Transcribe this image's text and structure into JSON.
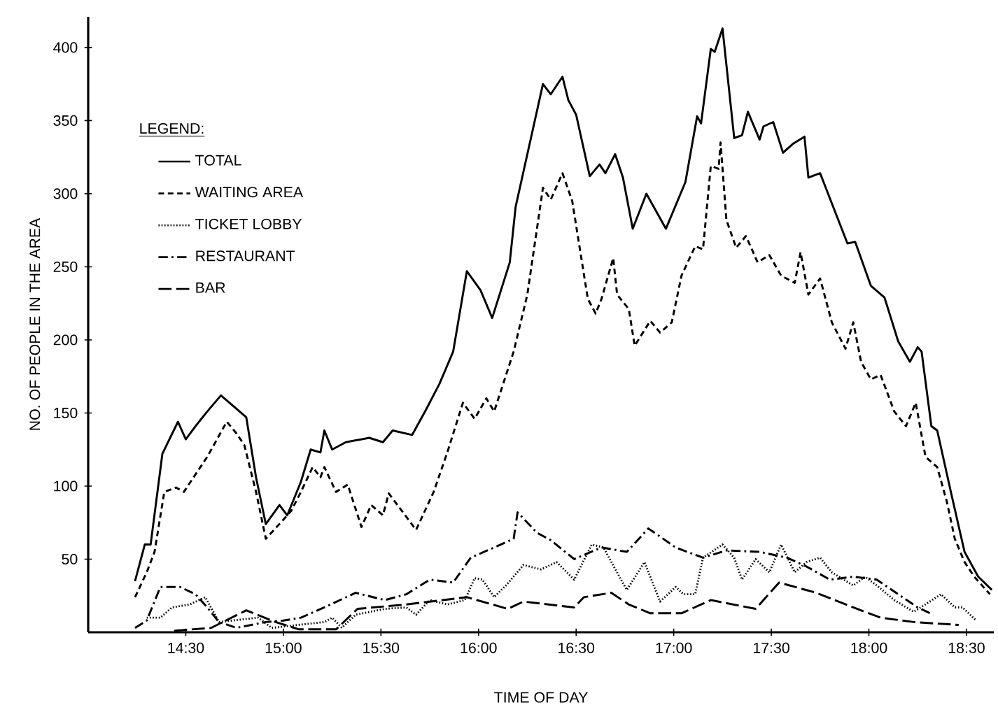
{
  "chart_data": {
    "type": "line",
    "xlabel": "TIME OF DAY",
    "ylabel": "NO. OF PEOPLE IN THE AREA",
    "legend_title": "LEGEND:",
    "legend": "top left",
    "grid": false,
    "marker": "none",
    "xlim": [
      14.0,
      18.64
    ],
    "ylim": [
      0,
      421
    ],
    "xticks": [
      {
        "value": 14.5,
        "label": "14:30"
      },
      {
        "value": 15.0,
        "label": "15:00"
      },
      {
        "value": 15.5,
        "label": "15:30"
      },
      {
        "value": 16.0,
        "label": "16:00"
      },
      {
        "value": 16.5,
        "label": "16:30"
      },
      {
        "value": 17.0,
        "label": "17:00"
      },
      {
        "value": 17.5,
        "label": "17:30"
      },
      {
        "value": 18.0,
        "label": "18:00"
      },
      {
        "value": 18.5,
        "label": "18:30"
      }
    ],
    "yticks": [
      50,
      100,
      150,
      200,
      250,
      300,
      350,
      400
    ],
    "series": [
      {
        "name": "TOTAL",
        "color": "#000000",
        "line_style": "solid",
        "x": [
          14.24,
          14.29,
          14.32,
          14.38,
          14.46,
          14.5,
          14.55,
          14.61,
          14.68,
          14.75,
          14.81,
          14.86,
          14.91,
          14.98,
          15.02,
          15.09,
          15.14,
          15.19,
          15.21,
          15.25,
          15.32,
          15.44,
          15.51,
          15.56,
          15.66,
          15.73,
          15.8,
          15.87,
          15.94,
          16.01,
          16.07,
          16.16,
          16.19,
          16.33,
          16.37,
          16.43,
          16.46,
          16.5,
          16.57,
          16.62,
          16.65,
          16.7,
          16.74,
          16.79,
          16.86,
          16.96,
          17.06,
          17.12,
          17.14,
          17.19,
          17.21,
          17.25,
          17.31,
          17.35,
          17.38,
          17.44,
          17.46,
          17.51,
          17.56,
          17.61,
          17.67,
          17.69,
          17.75,
          17.89,
          17.93,
          18.01,
          18.08,
          18.15,
          18.21,
          18.25,
          18.27,
          18.32,
          18.35,
          18.42,
          18.49,
          18.56,
          18.63
        ],
        "values": [
          35,
          60,
          60,
          122,
          144,
          132,
          141,
          151,
          162,
          154,
          147,
          106,
          74,
          87,
          80,
          103,
          125,
          123,
          138,
          125,
          130,
          133,
          130,
          138,
          135,
          152,
          170,
          192,
          247,
          234,
          215,
          253,
          291,
          375,
          368,
          380,
          364,
          354,
          312,
          320,
          314,
          327,
          311,
          276,
          300,
          276,
          308,
          353,
          348,
          399,
          397,
          413,
          338,
          340,
          356,
          337,
          346,
          349,
          328,
          334,
          339,
          311,
          314,
          266,
          267,
          237,
          229,
          199,
          185,
          195,
          192,
          141,
          138,
          96,
          55,
          38,
          29
        ]
      },
      {
        "name": "WAITING AREA",
        "color": "#000000",
        "line_style": "dashed",
        "x": [
          14.24,
          14.3,
          14.34,
          14.39,
          14.45,
          14.49,
          14.55,
          14.61,
          14.71,
          14.76,
          14.8,
          14.86,
          14.91,
          14.98,
          15.04,
          15.09,
          15.15,
          15.19,
          15.21,
          15.27,
          15.33,
          15.4,
          15.45,
          15.51,
          15.54,
          15.68,
          15.77,
          15.84,
          15.92,
          15.98,
          16.04,
          16.08,
          16.18,
          16.25,
          16.33,
          16.37,
          16.43,
          16.48,
          16.56,
          16.6,
          16.63,
          16.69,
          16.71,
          16.77,
          16.8,
          16.88,
          16.93,
          16.99,
          17.04,
          17.11,
          17.15,
          17.19,
          17.23,
          17.24,
          17.27,
          17.32,
          17.37,
          17.43,
          17.49,
          17.55,
          17.62,
          17.65,
          17.69,
          17.75,
          17.81,
          17.88,
          17.92,
          17.96,
          18.01,
          18.06,
          18.13,
          18.19,
          18.24,
          18.29,
          18.35,
          18.4,
          18.44,
          18.49,
          18.54,
          18.62
        ],
        "values": [
          24,
          41,
          55,
          96,
          99,
          96,
          108,
          120,
          144,
          136,
          128,
          96,
          64,
          74,
          83,
          96,
          113,
          106,
          113,
          96,
          101,
          72,
          87,
          80,
          95,
          70,
          96,
          123,
          157,
          146,
          160,
          151,
          192,
          231,
          304,
          296,
          314,
          295,
          228,
          218,
          228,
          256,
          231,
          221,
          196,
          213,
          205,
          212,
          244,
          264,
          262,
          319,
          317,
          335,
          282,
          263,
          271,
          253,
          258,
          244,
          239,
          260,
          231,
          242,
          212,
          194,
          212,
          185,
          173,
          176,
          151,
          141,
          157,
          120,
          113,
          89,
          64,
          48,
          38,
          26
        ]
      },
      {
        "name": "TICKET LOBBY",
        "color": "#000000",
        "line_style": "dotted",
        "x": [
          14.3,
          14.37,
          14.43,
          14.52,
          14.6,
          14.67,
          14.87,
          14.94,
          15.21,
          15.25,
          15.3,
          15.37,
          15.52,
          15.63,
          15.68,
          15.75,
          15.84,
          15.93,
          15.98,
          16.02,
          16.08,
          16.14,
          16.23,
          16.32,
          16.4,
          16.49,
          16.58,
          16.64,
          16.73,
          16.76,
          16.85,
          16.93,
          17.01,
          17.05,
          17.11,
          17.15,
          17.25,
          17.31,
          17.35,
          17.42,
          17.49,
          17.55,
          17.62,
          17.68,
          17.75,
          17.81,
          17.92,
          17.98,
          18.04,
          18.13,
          18.23,
          18.37,
          18.44,
          18.48,
          18.55
        ],
        "values": [
          10,
          10,
          17,
          19,
          24,
          7,
          10,
          3,
          7,
          10,
          3,
          12,
          16,
          17,
          12,
          22,
          19,
          22,
          37,
          36,
          24,
          32,
          46,
          43,
          48,
          36,
          60,
          58,
          36,
          29,
          48,
          21,
          31,
          26,
          26,
          51,
          60,
          51,
          36,
          50,
          41,
          60,
          41,
          48,
          51,
          41,
          32,
          38,
          32,
          22,
          14,
          26,
          17,
          17,
          8
        ]
      },
      {
        "name": "RESTAURANT",
        "color": "#000000",
        "line_style": "dashdot",
        "x": [
          14.24,
          14.3,
          14.37,
          14.47,
          14.55,
          14.61,
          14.67,
          14.76,
          14.91,
          15.0,
          15.09,
          15.21,
          15.37,
          15.52,
          15.63,
          15.75,
          15.87,
          15.96,
          16.08,
          16.18,
          16.2,
          16.3,
          16.37,
          16.49,
          16.63,
          16.76,
          16.87,
          17.01,
          17.15,
          17.27,
          17.44,
          17.58,
          17.68,
          17.8,
          17.92,
          18.04,
          18.15,
          18.25,
          18.33
        ],
        "values": [
          3,
          8,
          31,
          31,
          26,
          17,
          7,
          3,
          7,
          8,
          10,
          17,
          27,
          22,
          26,
          36,
          34,
          51,
          58,
          64,
          82,
          68,
          63,
          50,
          58,
          55,
          71,
          58,
          51,
          56,
          55,
          51,
          45,
          36,
          38,
          36,
          26,
          17,
          12
        ]
      },
      {
        "name": "BAR",
        "color": "#000000",
        "line_style": "longdash",
        "x": [
          14.44,
          14.63,
          14.81,
          14.96,
          15.08,
          15.27,
          15.38,
          15.63,
          15.94,
          16.15,
          16.23,
          16.49,
          16.54,
          16.68,
          16.77,
          16.88,
          17.04,
          17.19,
          17.42,
          17.54,
          17.73,
          17.92,
          18.06,
          18.23,
          18.46
        ],
        "values": [
          1,
          3,
          15,
          7,
          2,
          2,
          16,
          19,
          24,
          16,
          21,
          17,
          24,
          27,
          19,
          13,
          13,
          22,
          16,
          34,
          27,
          17,
          10,
          7,
          5
        ]
      }
    ]
  }
}
